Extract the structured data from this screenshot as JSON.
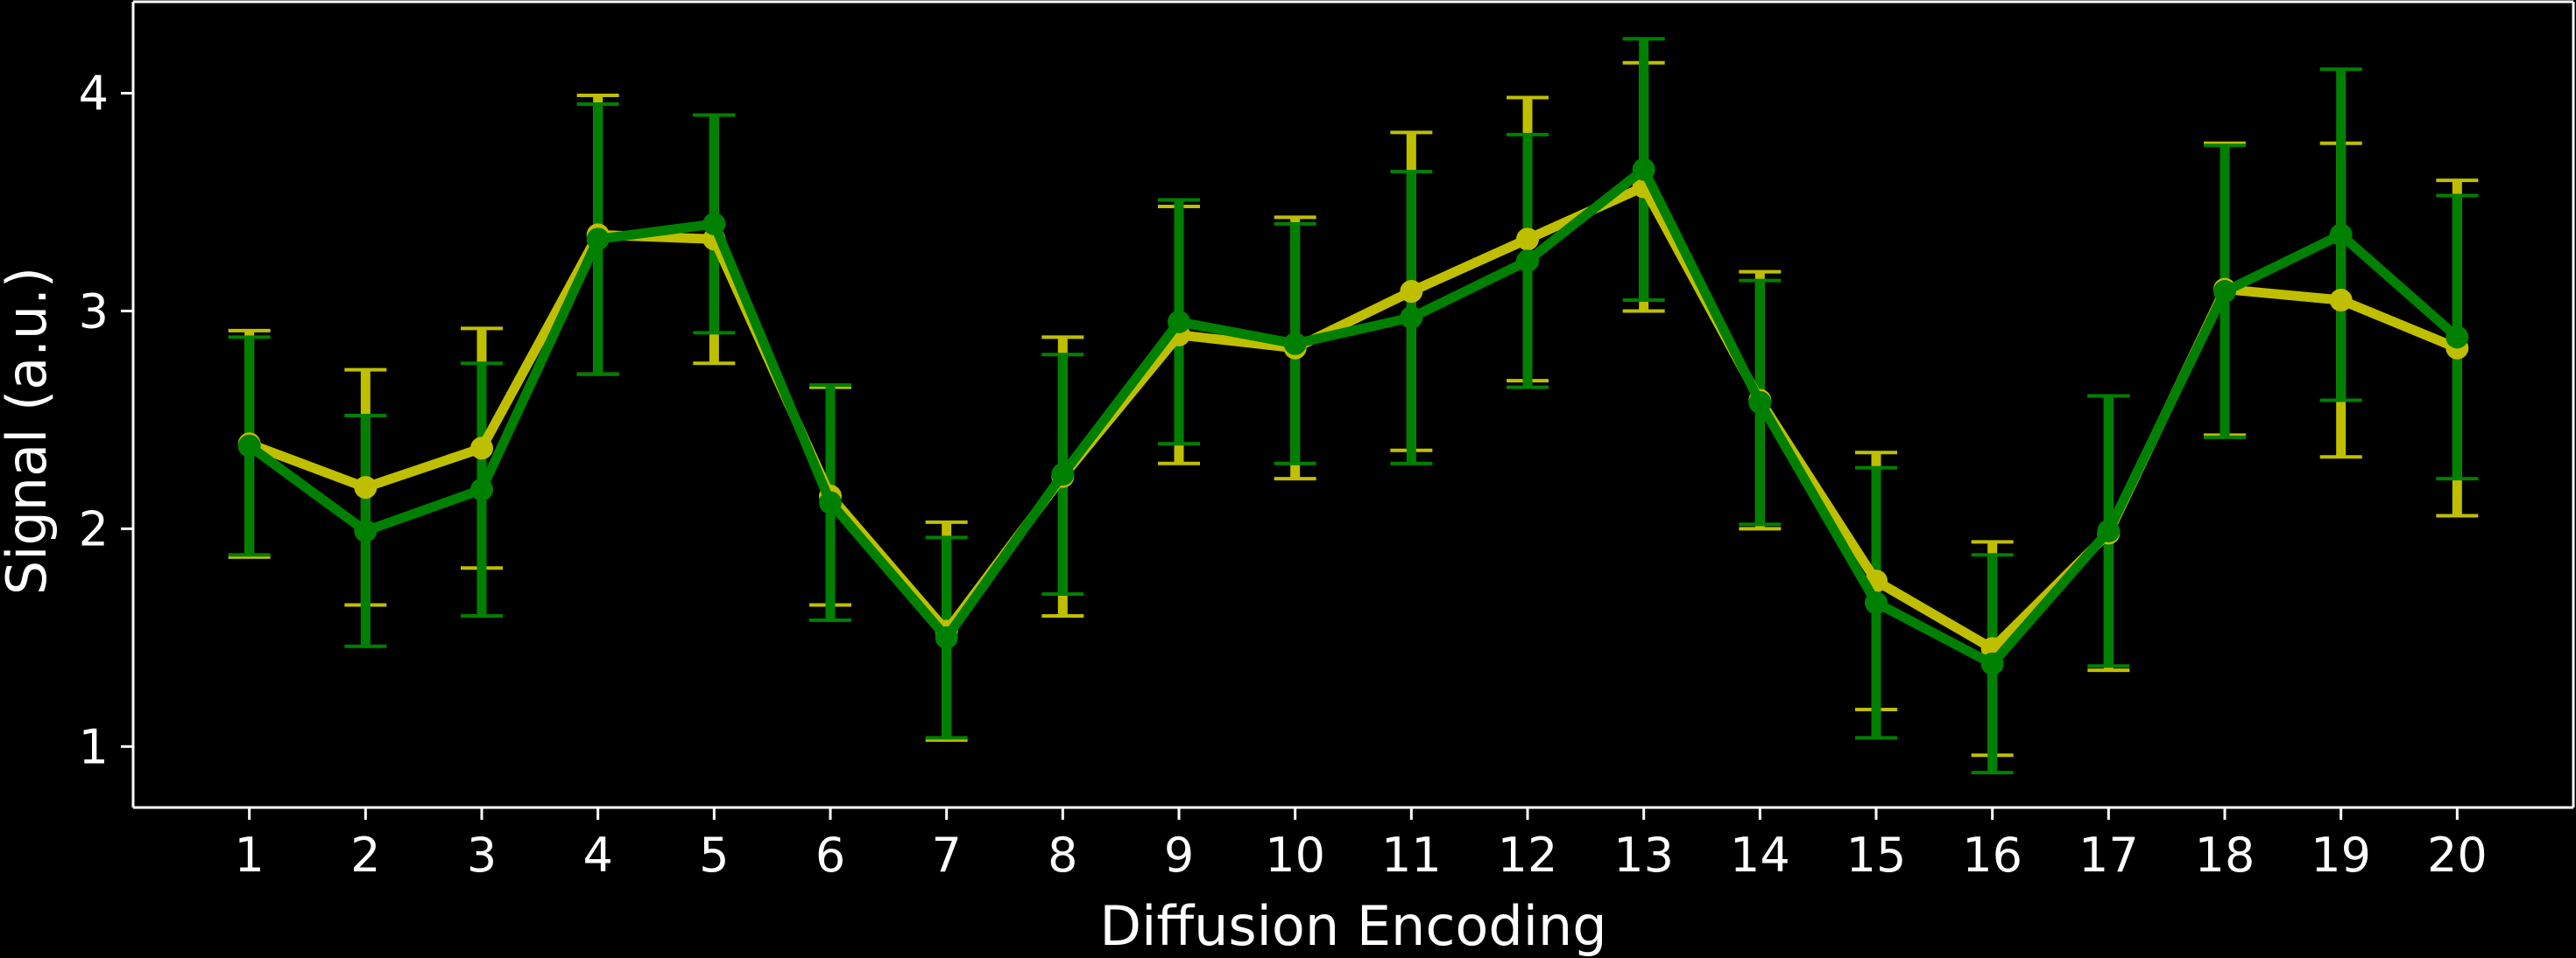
{
  "chart_data": {
    "type": "line",
    "title": "",
    "xlabel": "Diffusion Encoding",
    "ylabel": "Signal (a.u.)",
    "x": [
      1,
      2,
      3,
      4,
      5,
      6,
      7,
      8,
      9,
      10,
      11,
      12,
      13,
      14,
      15,
      16,
      17,
      18,
      19,
      20
    ],
    "xlim": [
      0,
      21
    ],
    "ylim": [
      0.72,
      4.42
    ],
    "yticks": [
      1,
      2,
      3,
      4
    ],
    "grid": false,
    "legend": "none",
    "series": [
      {
        "color": "#bfbf00",
        "values": [
          2.39,
          2.19,
          2.37,
          3.35,
          3.33,
          2.15,
          1.53,
          2.24,
          2.89,
          2.83,
          3.09,
          3.33,
          3.57,
          2.59,
          1.76,
          1.45,
          1.98,
          3.1,
          3.05,
          2.83
        ],
        "errors": [
          0.52,
          0.54,
          0.55,
          0.64,
          0.57,
          0.5,
          0.5,
          0.64,
          0.59,
          0.6,
          0.73,
          0.65,
          0.57,
          0.59,
          0.59,
          0.49,
          0.63,
          0.67,
          0.72,
          0.77
        ]
      },
      {
        "color": "#008000",
        "values": [
          2.38,
          1.99,
          2.18,
          3.33,
          3.4,
          2.12,
          1.5,
          2.25,
          2.95,
          2.85,
          2.97,
          3.23,
          3.65,
          2.58,
          1.66,
          1.38,
          1.99,
          3.09,
          3.35,
          2.88
        ],
        "errors": [
          0.5,
          0.53,
          0.58,
          0.62,
          0.5,
          0.54,
          0.46,
          0.55,
          0.56,
          0.55,
          0.67,
          0.58,
          0.6,
          0.56,
          0.62,
          0.5,
          0.62,
          0.67,
          0.76,
          0.65
        ]
      }
    ]
  }
}
